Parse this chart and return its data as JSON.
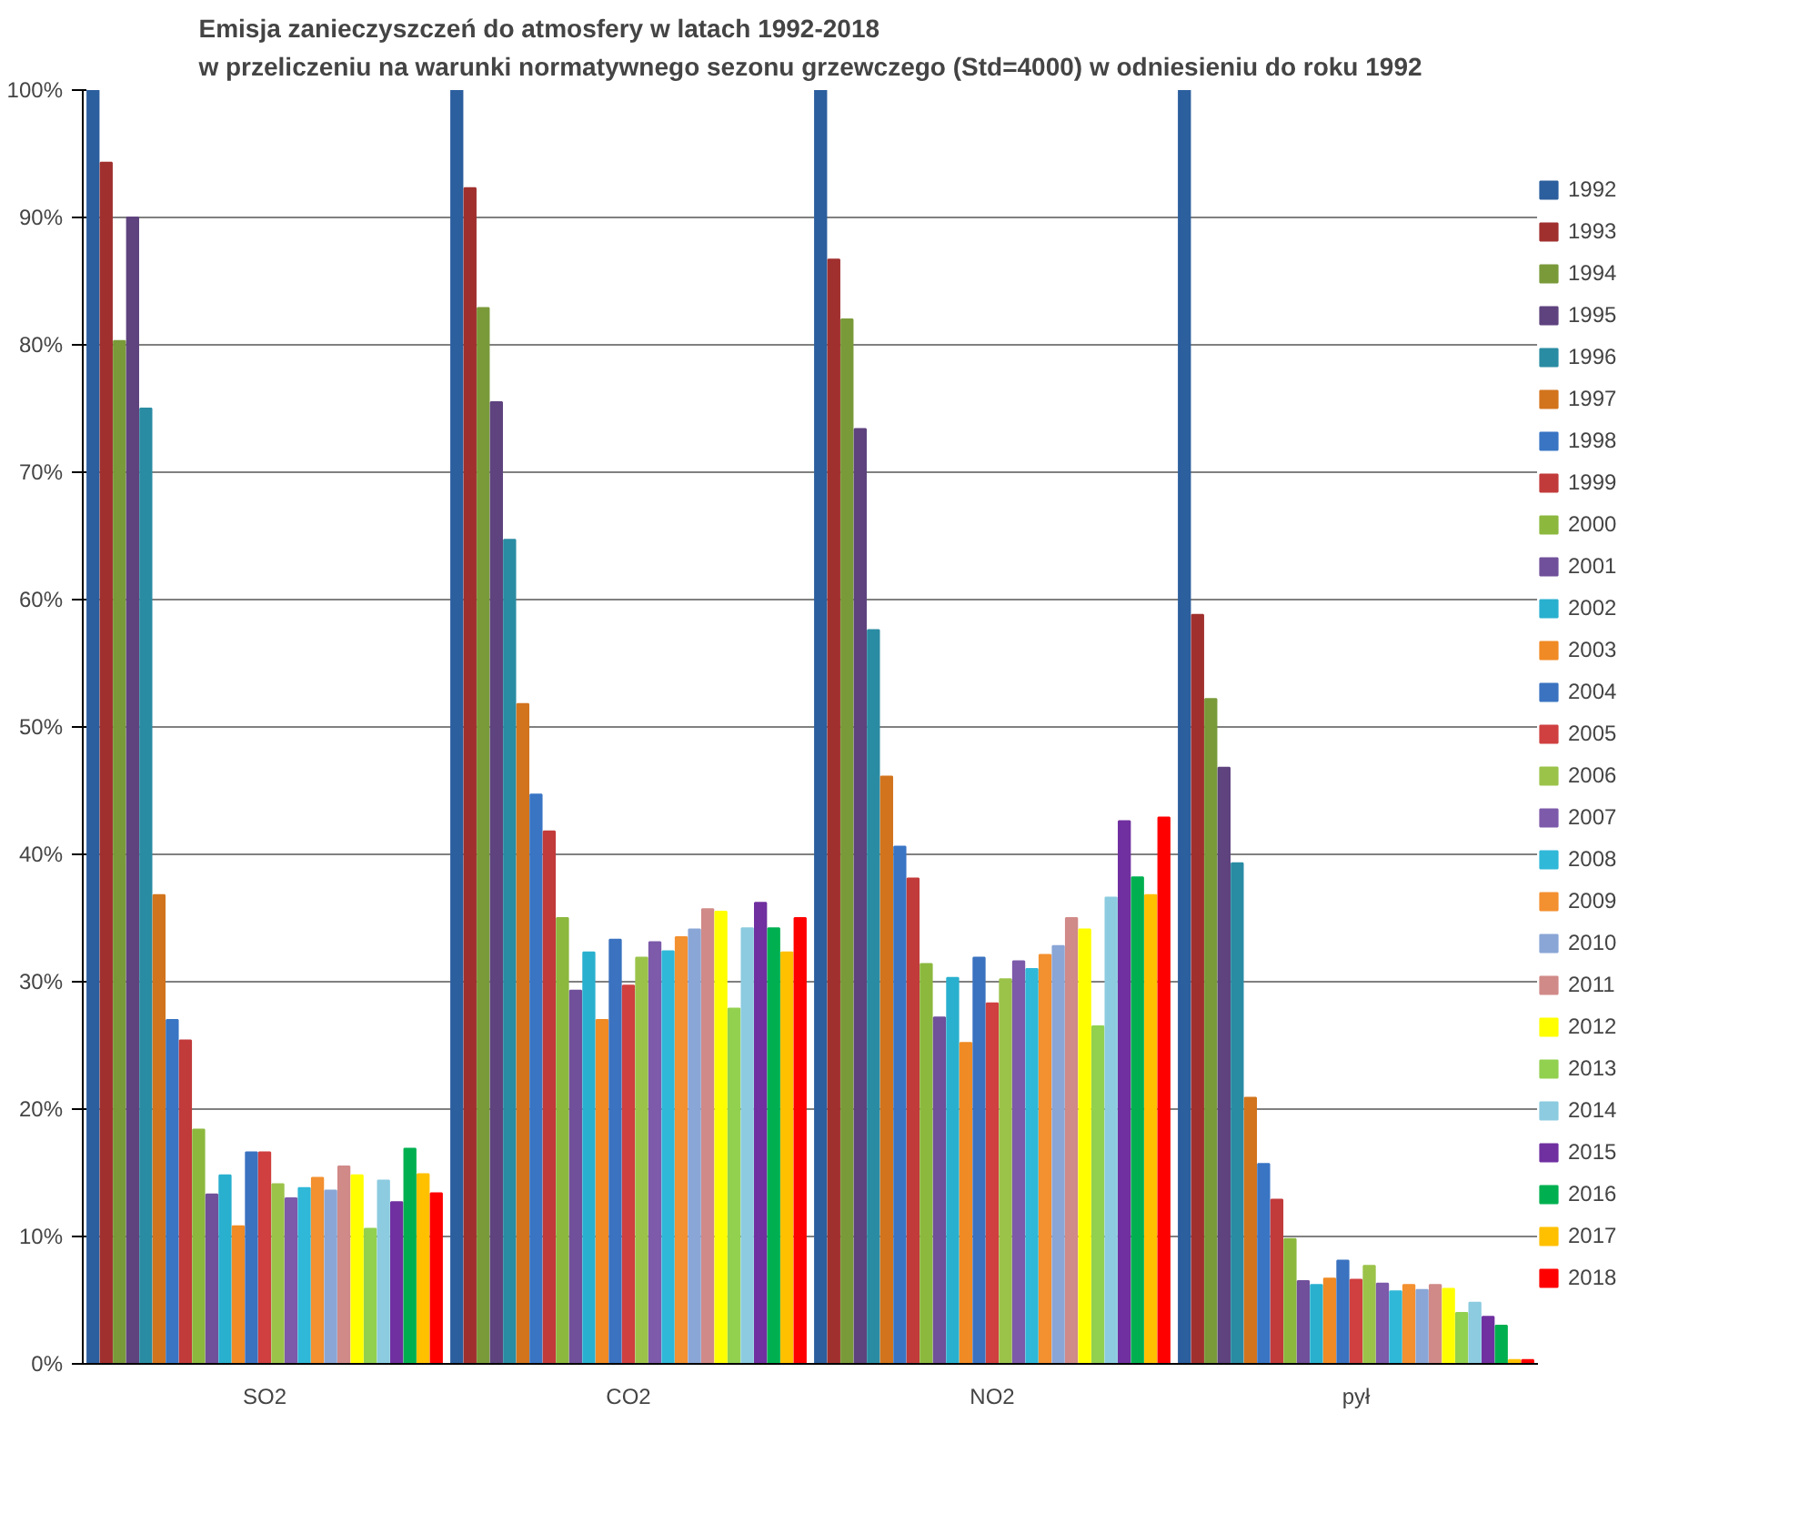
{
  "chart_data": {
    "type": "bar",
    "title": "Emisja zanieczyszczeń do atmosfery w latach 1992-2018\nw przeliczeniu na warunki normatywnego sezonu grzewczego (Std=4000) w odniesieniu do roku 1992",
    "categories": [
      "SO2",
      "CO2",
      "NO2",
      "pył"
    ],
    "ylim": [
      0,
      100
    ],
    "yticks": [
      {
        "value": 0,
        "label": "0%"
      },
      {
        "value": 10,
        "label": "10%"
      },
      {
        "value": 20,
        "label": "20%"
      },
      {
        "value": 30,
        "label": "30%"
      },
      {
        "value": 40,
        "label": "40%"
      },
      {
        "value": 50,
        "label": "50%"
      },
      {
        "value": 60,
        "label": "60%"
      },
      {
        "value": 70,
        "label": "70%"
      },
      {
        "value": 80,
        "label": "80%"
      },
      {
        "value": 90,
        "label": "90%"
      },
      {
        "value": 100,
        "label": "100%"
      }
    ],
    "grid": "y",
    "legend": "right",
    "series": [
      {
        "name": "1992",
        "color": "#2c5f9e",
        "values": [
          100,
          100,
          100,
          100
        ]
      },
      {
        "name": "1993",
        "color": "#a0302e",
        "values": [
          94.3,
          92.3,
          86.7,
          58.8
        ]
      },
      {
        "name": "1994",
        "color": "#7a9a3a",
        "values": [
          80.3,
          82.9,
          82.0,
          52.2
        ]
      },
      {
        "name": "1995",
        "color": "#5e437e",
        "values": [
          90.0,
          75.5,
          73.4,
          46.8
        ]
      },
      {
        "name": "1996",
        "color": "#2a8ca3",
        "values": [
          75.0,
          64.7,
          57.6,
          39.3
        ]
      },
      {
        "name": "1997",
        "color": "#d2741d",
        "values": [
          36.8,
          51.8,
          46.1,
          20.9
        ]
      },
      {
        "name": "1998",
        "color": "#3a75c4",
        "values": [
          27.0,
          44.7,
          40.6,
          15.7
        ]
      },
      {
        "name": "1999",
        "color": "#c23b3b",
        "values": [
          25.4,
          41.8,
          38.1,
          12.9
        ]
      },
      {
        "name": "2000",
        "color": "#8cb83e",
        "values": [
          18.4,
          35.0,
          31.4,
          9.8
        ]
      },
      {
        "name": "2001",
        "color": "#70509a",
        "values": [
          13.3,
          29.3,
          27.2,
          6.5
        ]
      },
      {
        "name": "2002",
        "color": "#2ab0cf",
        "values": [
          14.8,
          32.3,
          30.3,
          6.2
        ]
      },
      {
        "name": "2003",
        "color": "#f08a24",
        "values": [
          10.8,
          27.0,
          25.2,
          6.7
        ]
      },
      {
        "name": "2004",
        "color": "#3b73c0",
        "values": [
          16.6,
          33.3,
          31.9,
          8.1
        ]
      },
      {
        "name": "2005",
        "color": "#d04040",
        "values": [
          16.6,
          29.7,
          28.3,
          6.6
        ]
      },
      {
        "name": "2006",
        "color": "#9bc34a",
        "values": [
          14.1,
          31.9,
          30.2,
          7.7
        ]
      },
      {
        "name": "2007",
        "color": "#7d5aaa",
        "values": [
          13.0,
          33.1,
          31.6,
          6.3
        ]
      },
      {
        "name": "2008",
        "color": "#30b8d8",
        "values": [
          13.8,
          32.4,
          31.0,
          5.7
        ]
      },
      {
        "name": "2009",
        "color": "#f39030",
        "values": [
          14.6,
          33.5,
          32.1,
          6.2
        ]
      },
      {
        "name": "2010",
        "color": "#8aa6d6",
        "values": [
          13.6,
          34.1,
          32.8,
          5.8
        ]
      },
      {
        "name": "2011",
        "color": "#d08a88",
        "values": [
          15.5,
          35.7,
          35.0,
          6.2
        ]
      },
      {
        "name": "2012",
        "color": "#ffff00",
        "values": [
          14.8,
          35.5,
          34.1,
          5.9
        ]
      },
      {
        "name": "2013",
        "color": "#92d050",
        "values": [
          10.6,
          27.9,
          26.5,
          4.0
        ]
      },
      {
        "name": "2014",
        "color": "#8ccbe0",
        "values": [
          14.4,
          34.2,
          36.6,
          4.8
        ]
      },
      {
        "name": "2015",
        "color": "#7030a0",
        "values": [
          12.7,
          36.2,
          42.6,
          3.7
        ]
      },
      {
        "name": "2016",
        "color": "#00b050",
        "values": [
          16.9,
          34.2,
          38.2,
          3.0
        ]
      },
      {
        "name": "2017",
        "color": "#ffc000",
        "values": [
          14.9,
          32.3,
          36.8,
          0.3
        ]
      },
      {
        "name": "2018",
        "color": "#ff0000",
        "values": [
          13.4,
          35.0,
          42.9,
          0.3
        ]
      }
    ]
  }
}
